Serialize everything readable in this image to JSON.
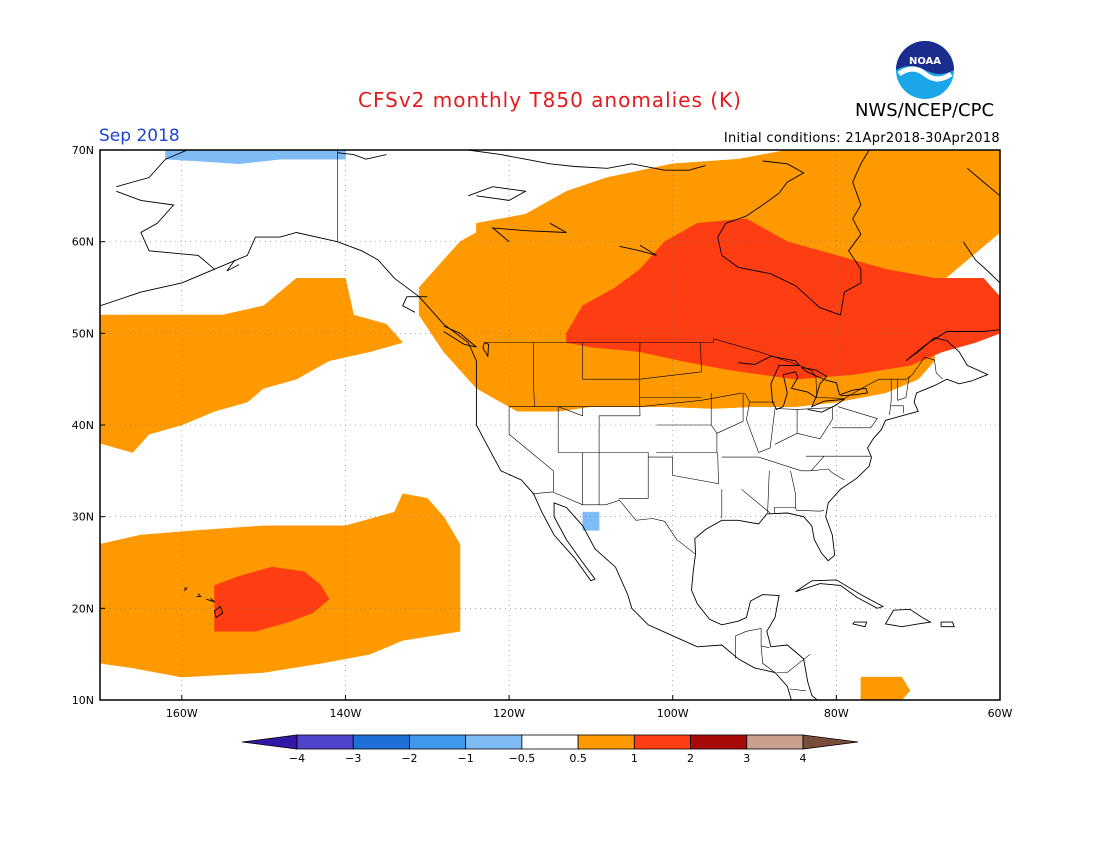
{
  "header": {
    "title": "CFSv2 monthly T850 anomalies (K)",
    "organization": "NWS/NCEP/CPC",
    "logo_text": "NOAA",
    "period": "Sep 2018",
    "initial_conditions": "Initial conditions: 21Apr2018-30Apr2018"
  },
  "map": {
    "projection": "cylindrical",
    "lon_range": [
      -170,
      -60
    ],
    "lat_range": [
      10,
      70
    ],
    "grid": true,
    "lat_labels": [
      "70N",
      "60N",
      "50N",
      "40N",
      "30N",
      "20N",
      "10N"
    ],
    "lon_labels": [
      "160W",
      "140W",
      "120W",
      "100W",
      "80W",
      "60W"
    ],
    "anomaly_colors": {
      "neg_0_5_to_1": "#7fbcf5",
      "pos_0_5_to_1": "#ff9900",
      "pos_1_to_2": "#ff3d12"
    }
  },
  "colorbar": {
    "labels": [
      "-4",
      "-3",
      "-2",
      "-1",
      "-0.5",
      "0.5",
      "1",
      "2",
      "3",
      "4"
    ],
    "colors": [
      "#3318a6",
      "#4f45cc",
      "#1e6fd6",
      "#3f98ec",
      "#7fbcf5",
      "#ffffff",
      "#ff9900",
      "#ff3d12",
      "#a80a0a",
      "#c9a08e",
      "#7a4c3c"
    ]
  }
}
